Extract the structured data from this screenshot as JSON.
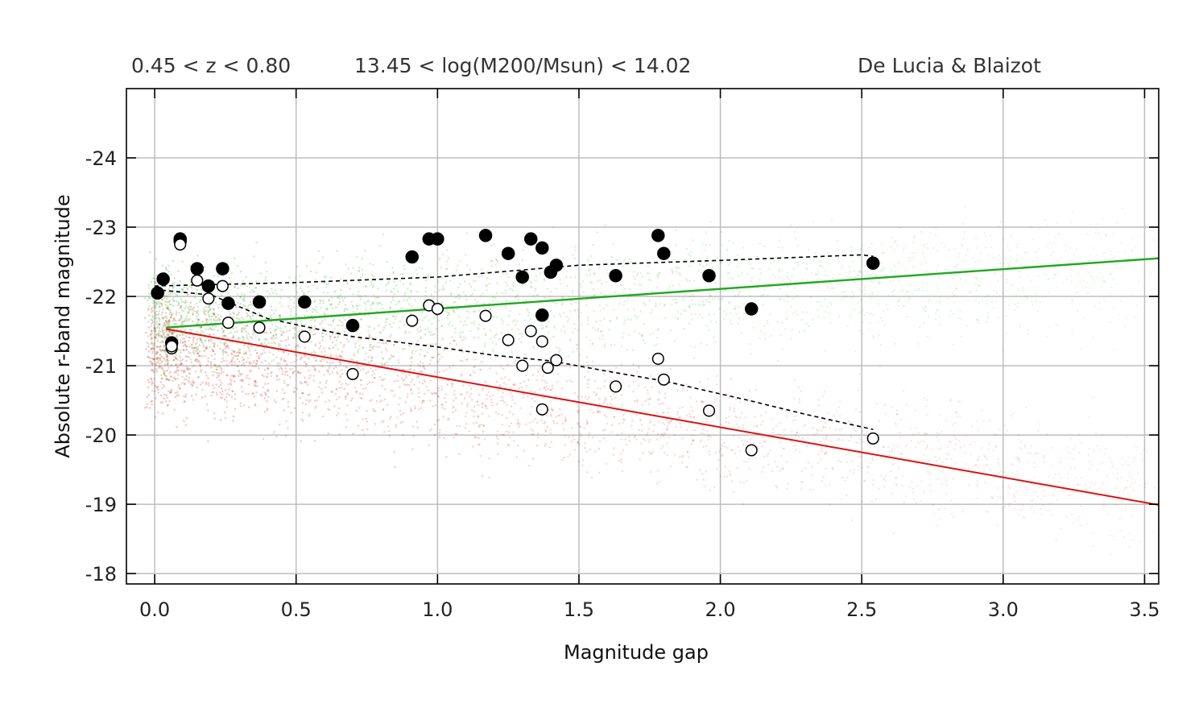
{
  "header": {
    "left": "0.45 < z < 0.80",
    "middle": "13.45 < log(M200/Msun) < 14.02",
    "right": "De Lucia & Blaizot"
  },
  "chart_data": {
    "type": "scatter",
    "xlabel": "Magnitude gap",
    "ylabel": "Absolute r-band magnitude",
    "xlim": [
      -0.1,
      3.55
    ],
    "ylim": [
      -17.85,
      -25
    ],
    "y_inverted": true,
    "grid": true,
    "x_ticks": [
      0.0,
      0.5,
      1.0,
      1.5,
      2.0,
      2.5,
      3.0,
      3.5
    ],
    "x_tick_labels": [
      "0.0",
      "0.5",
      "1.0",
      "1.5",
      "2.0",
      "2.5",
      "3.0",
      "3.5"
    ],
    "y_ticks": [
      -24,
      -23,
      -22,
      -21,
      -20,
      -19,
      -18
    ],
    "y_tick_labels": [
      "-24",
      "-23",
      "-22",
      "-21",
      "-20",
      "-19",
      "-18"
    ],
    "colors": {
      "green": "#1fa81f",
      "red": "#dd1111",
      "grid": "#bdbdbd",
      "marker": "#000000"
    },
    "series": [
      {
        "kind": "filled-markers",
        "points": [
          [
            0.01,
            -22.05
          ],
          [
            0.03,
            -22.25
          ],
          [
            0.06,
            -21.33
          ],
          [
            0.09,
            -22.83
          ],
          [
            0.09,
            -22.8
          ],
          [
            0.15,
            -22.4
          ],
          [
            0.19,
            -22.15
          ],
          [
            0.24,
            -22.4
          ],
          [
            0.26,
            -21.9
          ],
          [
            0.37,
            -21.92
          ],
          [
            0.53,
            -21.92
          ],
          [
            0.7,
            -21.58
          ],
          [
            0.91,
            -22.57
          ],
          [
            0.97,
            -22.83
          ],
          [
            1.0,
            -22.83
          ],
          [
            1.17,
            -22.88
          ],
          [
            1.25,
            -22.62
          ],
          [
            1.3,
            -22.28
          ],
          [
            1.33,
            -22.83
          ],
          [
            1.37,
            -22.7
          ],
          [
            1.37,
            -21.73
          ],
          [
            1.4,
            -22.35
          ],
          [
            1.42,
            -22.45
          ],
          [
            1.63,
            -22.3
          ],
          [
            1.78,
            -22.88
          ],
          [
            1.8,
            -22.62
          ],
          [
            1.96,
            -22.3
          ],
          [
            2.11,
            -21.82
          ],
          [
            2.54,
            -22.48
          ]
        ]
      },
      {
        "kind": "open-markers",
        "points": [
          [
            0.06,
            -21.25
          ],
          [
            0.06,
            -21.28
          ],
          [
            0.09,
            -22.75
          ],
          [
            0.15,
            -22.23
          ],
          [
            0.19,
            -21.97
          ],
          [
            0.24,
            -22.15
          ],
          [
            0.26,
            -21.62
          ],
          [
            0.37,
            -21.55
          ],
          [
            0.53,
            -21.42
          ],
          [
            0.7,
            -20.88
          ],
          [
            0.91,
            -21.65
          ],
          [
            0.97,
            -21.87
          ],
          [
            1.0,
            -21.82
          ],
          [
            1.17,
            -21.72
          ],
          [
            1.25,
            -21.37
          ],
          [
            1.3,
            -21.0
          ],
          [
            1.33,
            -21.5
          ],
          [
            1.37,
            -21.35
          ],
          [
            1.39,
            -20.97
          ],
          [
            1.42,
            -21.08
          ],
          [
            1.37,
            -20.37
          ],
          [
            1.63,
            -20.7
          ],
          [
            1.78,
            -21.1
          ],
          [
            1.8,
            -20.8
          ],
          [
            1.96,
            -20.35
          ],
          [
            2.11,
            -19.78
          ],
          [
            2.54,
            -19.95
          ]
        ]
      },
      {
        "kind": "dashed-upper",
        "points": [
          [
            0.0,
            -22.15
          ],
          [
            0.5,
            -22.2
          ],
          [
            1.0,
            -22.28
          ],
          [
            1.5,
            -22.45
          ],
          [
            2.0,
            -22.52
          ],
          [
            2.5,
            -22.6
          ],
          [
            2.54,
            -22.58
          ]
        ]
      },
      {
        "kind": "dashed-lower",
        "points": [
          [
            0.0,
            -22.1
          ],
          [
            0.2,
            -22.02
          ],
          [
            0.4,
            -21.68
          ],
          [
            0.7,
            -21.42
          ],
          [
            1.0,
            -21.27
          ],
          [
            1.2,
            -21.15
          ],
          [
            1.4,
            -21.07
          ],
          [
            1.6,
            -20.92
          ],
          [
            1.8,
            -20.78
          ],
          [
            2.1,
            -20.5
          ],
          [
            2.3,
            -20.3
          ],
          [
            2.54,
            -20.08
          ]
        ]
      },
      {
        "kind": "green-fit",
        "points": [
          [
            0.04,
            -21.55
          ],
          [
            3.55,
            -22.55
          ]
        ]
      },
      {
        "kind": "red-fit",
        "points": [
          [
            0.04,
            -21.53
          ],
          [
            3.55,
            -18.99
          ]
        ]
      }
    ],
    "density_clouds": [
      {
        "color": "green",
        "shape": "band",
        "center_line": [
          [
            0.0,
            -21.6
          ],
          [
            3.5,
            -22.4
          ]
        ],
        "spread": 0.42
      },
      {
        "color": "red",
        "shape": "band",
        "center_line": [
          [
            0.0,
            -21.2
          ],
          [
            3.5,
            -19.2
          ]
        ],
        "spread": 0.42
      }
    ]
  }
}
